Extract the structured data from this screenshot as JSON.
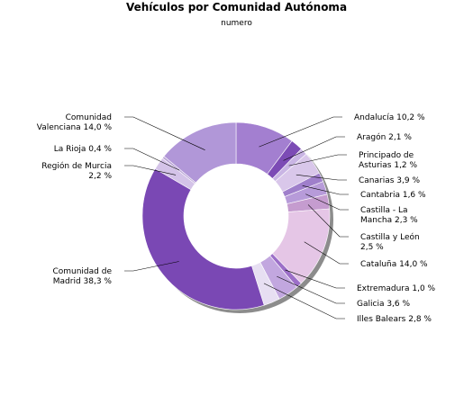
{
  "chart_data": {
    "type": "pie",
    "title": "Vehículos por Comunidad Autónoma",
    "subtitle": "numero",
    "hole": true,
    "slices": [
      {
        "name": "Andalucía",
        "label": [
          "Andalucía 10,2 %"
        ],
        "value": 10.2,
        "color": "#a37fd0"
      },
      {
        "name": "Aragón",
        "label": [
          "Aragón 2,1 %"
        ],
        "value": 2.1,
        "color": "#7c4bb5"
      },
      {
        "name": "Principado de Asturias",
        "label": [
          "Principado de",
          "Asturias 1,2 %"
        ],
        "value": 1.2,
        "color": "#c9b5e4"
      },
      {
        "name": "Canarias",
        "label": [
          "Canarias 3,9 %"
        ],
        "value": 3.9,
        "color": "#d9c7ea"
      },
      {
        "name": "Cantabria",
        "label": [
          "Cantabria 1,6 %"
        ],
        "value": 1.6,
        "color": "#9f7fcb"
      },
      {
        "name": "Castilla - La Mancha",
        "label": [
          "Castilla - La",
          "Mancha 2,3 %"
        ],
        "value": 2.3,
        "color": "#b79bd9"
      },
      {
        "name": "Castilla y León",
        "label": [
          "Castilla y León",
          "2,5 %"
        ],
        "value": 2.5,
        "color": "#c59ccf"
      },
      {
        "name": "Cataluña",
        "label": [
          "Cataluña 14,0 %"
        ],
        "value": 14.0,
        "color": "#e5c6e6"
      },
      {
        "name": "Extremadura",
        "label": [
          "Extremadura 1,0 %"
        ],
        "value": 1.0,
        "color": "#9c6fc8"
      },
      {
        "name": "Galicia",
        "label": [
          "Galicia 3,6 %"
        ],
        "value": 3.6,
        "color": "#c2a7df"
      },
      {
        "name": "Illes Balears",
        "label": [
          "Illes Balears 2,8 %"
        ],
        "value": 2.8,
        "color": "#e7dff2"
      },
      {
        "name": "Comunidad de Madrid",
        "label": [
          "Comunidad de",
          "Madrid 38,3 %"
        ],
        "value": 38.3,
        "color": "#7a48b4"
      },
      {
        "name": "Región de Murcia",
        "label": [
          "Región de Murcia",
          "2,2 %"
        ],
        "value": 2.2,
        "color": "#d4c3e8"
      },
      {
        "name": "La Rioja",
        "label": [
          "La Rioja 0,4 %"
        ],
        "value": 0.4,
        "color": "#b9a3d6"
      },
      {
        "name": "Comunidad Valenciana",
        "label": [
          "Comunidad",
          "Valenciana 14,0 %"
        ],
        "value": 14.0,
        "color": "#b197d8"
      }
    ]
  }
}
